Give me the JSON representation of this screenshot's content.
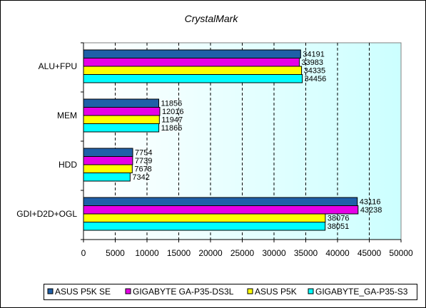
{
  "chart_data": {
    "type": "bar",
    "orientation": "horizontal",
    "title": "CrystalMark",
    "xlabel": "",
    "ylabel": "",
    "categories": [
      "ALU+FPU",
      "MEM",
      "HDD",
      "GDI+D2D+OGL"
    ],
    "series": [
      {
        "name": "ASUS P5K SE",
        "color": "#1f5fa8",
        "values": [
          34191,
          11856,
          7754,
          43116
        ]
      },
      {
        "name": "GIGABYTE GA-P35-DS3L",
        "color": "#e600e6",
        "values": [
          33983,
          12016,
          7739,
          43238
        ]
      },
      {
        "name": "ASUS P5K",
        "color": "#ffff00",
        "values": [
          34335,
          11947,
          7678,
          38076
        ]
      },
      {
        "name": "GIGABYTE_GA-P35-S3",
        "color": "#00ffff",
        "values": [
          34456,
          11866,
          7342,
          38051
        ]
      }
    ],
    "xlim": [
      0,
      50000
    ],
    "xticks": [
      0,
      5000,
      10000,
      15000,
      20000,
      25000,
      30000,
      35000,
      40000,
      45000,
      50000
    ],
    "grid": "vertical dashed",
    "legend_position": "bottom",
    "plot_background": "gradient white to light cyan"
  }
}
